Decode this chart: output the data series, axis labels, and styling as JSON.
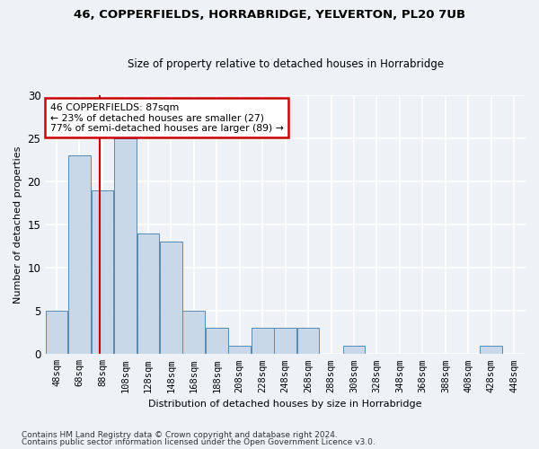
{
  "title": "46, COPPERFIELDS, HORRABRIDGE, YELVERTON, PL20 7UB",
  "subtitle": "Size of property relative to detached houses in Horrabridge",
  "xlabel": "Distribution of detached houses by size in Horrabridge",
  "ylabel": "Number of detached properties",
  "bar_color": "#c8d8e8",
  "bar_edge_color": "#5a8ab0",
  "categories": [
    "48sqm",
    "68sqm",
    "88sqm",
    "108sqm",
    "128sqm",
    "148sqm",
    "168sqm",
    "188sqm",
    "208sqm",
    "228sqm",
    "248sqm",
    "268sqm",
    "288sqm",
    "308sqm",
    "328sqm",
    "348sqm",
    "368sqm",
    "388sqm",
    "408sqm",
    "428sqm",
    "448sqm"
  ],
  "values": [
    5,
    23,
    19,
    25,
    14,
    13,
    5,
    3,
    1,
    3,
    3,
    3,
    0,
    1,
    0,
    0,
    0,
    0,
    0,
    1,
    0
  ],
  "ylim": [
    0,
    30
  ],
  "yticks": [
    0,
    5,
    10,
    15,
    20,
    25,
    30
  ],
  "property_label": "46 COPPERFIELDS: 87sqm",
  "annotation_line1": "← 23% of detached houses are smaller (27)",
  "annotation_line2": "77% of semi-detached houses are larger (89) →",
  "vline_x_index": 1.87,
  "footnote1": "Contains HM Land Registry data © Crown copyright and database right 2024.",
  "footnote2": "Contains public sector information licensed under the Open Government Licence v3.0.",
  "background_color": "#eef2f7",
  "grid_color": "#ffffff",
  "annotation_box_color": "#ffffff",
  "annotation_box_edge": "#cc0000",
  "vline_color": "#cc0000"
}
